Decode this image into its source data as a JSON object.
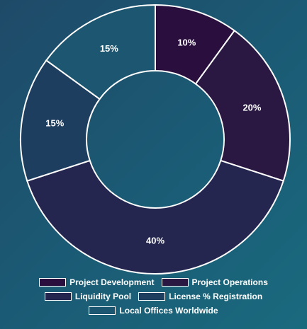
{
  "chart_data": {
    "type": "pie",
    "variant": "donut",
    "title": "",
    "slices": [
      {
        "name": "Project Development",
        "value": 10,
        "label": "10%",
        "color": "#2a0f3e"
      },
      {
        "name": "Project Operations",
        "value": 20,
        "label": "20%",
        "color": "#2a1843"
      },
      {
        "name": "Liquidity Pool",
        "value": 40,
        "label": "40%",
        "color": "#24264f"
      },
      {
        "name": "License % Registration",
        "value": 15,
        "label": "15%",
        "color": "#1e3e5f"
      },
      {
        "name": "Local Offices Worldwide",
        "value": 15,
        "label": "15%",
        "color": "#1c5670"
      }
    ],
    "legend_position": "bottom",
    "stroke_color": "#ffffff"
  }
}
